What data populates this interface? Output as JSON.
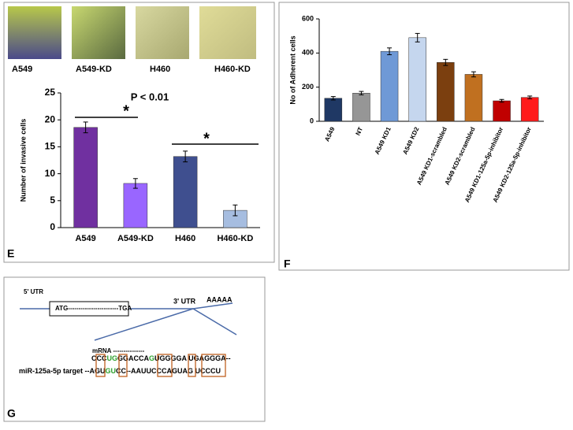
{
  "photos": {
    "labels": [
      "A549",
      "A549-KD",
      "H460",
      "H460-KD"
    ]
  },
  "panels": {
    "e": "E",
    "f": "F",
    "g": "G"
  },
  "chart_data": [
    {
      "type": "bar",
      "title": "P < 0.01",
      "ylabel": "Number of invasive cells",
      "categories": [
        "A549",
        "A549-KD",
        "H460",
        "H460-KD"
      ],
      "values": [
        18.6,
        8.2,
        13.2,
        3.2
      ],
      "errors": [
        1.0,
        0.9,
        1.0,
        1.0
      ],
      "colors": [
        "#7030a0",
        "#9966ff",
        "#3f4f8f",
        "#a6bde0"
      ],
      "ylim": [
        0,
        25
      ],
      "yticks": [
        0,
        5,
        10,
        15,
        20,
        25
      ],
      "annotations": [
        "*",
        "*"
      ]
    },
    {
      "type": "bar",
      "ylabel": "No of Adherent cells",
      "categories": [
        "A549",
        "NT",
        "A549 KD1",
        "A549 KD2",
        "A549 KD1-scrambled",
        "A549 KD2-scrambled",
        "A549 KD1-125a-5p-inhibitor",
        "A549 KD2-125a-5p-inhibitor"
      ],
      "values": [
        135,
        165,
        410,
        490,
        345,
        275,
        120,
        140
      ],
      "errors": [
        10,
        10,
        20,
        25,
        18,
        15,
        8,
        8
      ],
      "colors": [
        "#1f3864",
        "#969696",
        "#6f99d6",
        "#c5d6ee",
        "#7b3f0f",
        "#c07020",
        "#c00000",
        "#ff1a1a"
      ],
      "ylim": [
        0,
        600
      ],
      "yticks": [
        0,
        200,
        400,
        600
      ]
    }
  ],
  "diagram": {
    "utr5": "5' UTR",
    "gene": "ATG------------------------TGA",
    "utr3": "3' UTR",
    "polya": "AAAAA",
    "mrna_label": "mRNA ---------------",
    "mrna": [
      {
        "text": "CCC",
        "color": "#000000"
      },
      {
        "text": "UG",
        "color": "#2ca02c"
      },
      {
        "text": "GGACCA",
        "color": "#000000"
      },
      {
        "text": "G",
        "color": "#2ca02c"
      },
      {
        "text": "UGGGGA UGAGGGA--",
        "color": "#000000"
      }
    ],
    "target": [
      {
        "text": "miR-125a-5p target --AGU",
        "color": "#000000"
      },
      {
        "text": "GU",
        "color": "#2ca02c"
      },
      {
        "text": "CC--AAUUCCCAGUAG UCCCU",
        "color": "#000000"
      }
    ]
  }
}
